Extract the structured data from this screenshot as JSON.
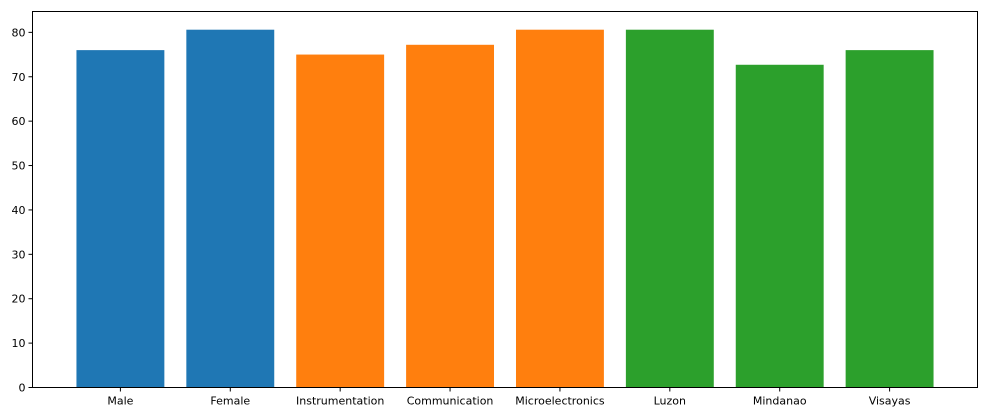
{
  "chart_data": {
    "type": "bar",
    "title": "",
    "xlabel": "",
    "ylabel": "",
    "categories": [
      "Male",
      "Female",
      "Instrumentation",
      "Communication",
      "Microelectronics",
      "Luzon",
      "Mindanao",
      "Visayas"
    ],
    "values": [
      76.0,
      80.6,
      75.0,
      77.2,
      80.6,
      80.6,
      72.7,
      76.0
    ],
    "bar_colors": [
      "#1f77b4",
      "#1f77b4",
      "#ff7f0e",
      "#ff7f0e",
      "#ff7f0e",
      "#2ca02c",
      "#2ca02c",
      "#2ca02c"
    ],
    "ylim": [
      0,
      84.7
    ],
    "yticks": [
      0,
      10,
      20,
      30,
      40,
      50,
      60,
      70,
      80
    ],
    "grid": false,
    "legend": "none"
  }
}
